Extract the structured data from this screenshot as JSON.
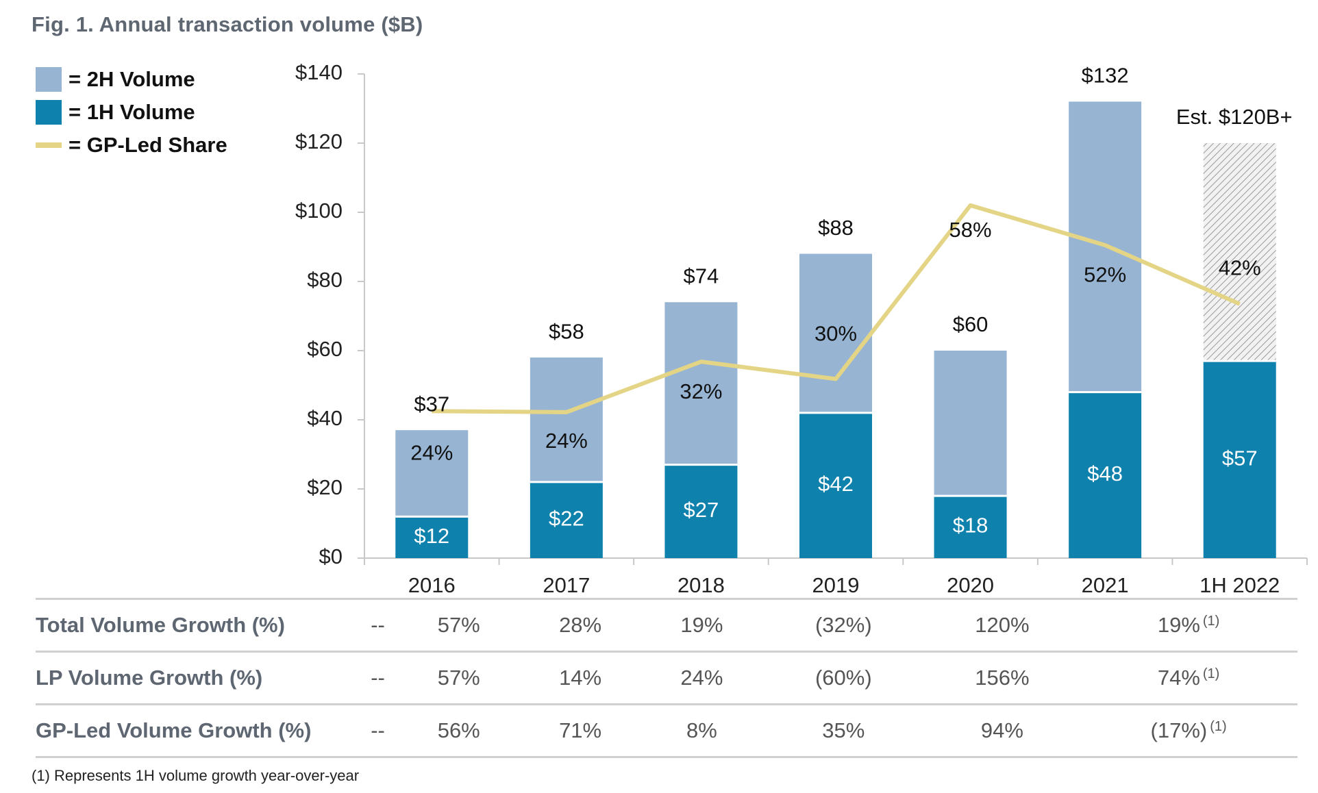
{
  "figure_title": "Fig. 1. Annual transaction volume ($B)",
  "colors": {
    "h2": "#97b5d3",
    "h1": "#0e81ad",
    "gp_line": "#e4d485",
    "axis": "#c8c8c8",
    "estimate_hatch": "#9a9a9a"
  },
  "legend": [
    {
      "label": "= 2H Volume",
      "color": "#97b5d3",
      "kind": "box"
    },
    {
      "label": "= 1H Volume",
      "color": "#0e81ad",
      "kind": "box"
    },
    {
      "label": "= GP-Led Share",
      "color": "#e4d485",
      "kind": "line"
    }
  ],
  "chart_data": {
    "type": "bar",
    "title": "Fig. 1. Annual transaction volume ($B)",
    "xlabel": "",
    "ylabel": "",
    "ylim": [
      0,
      140
    ],
    "y_ticks": [
      0,
      20,
      40,
      60,
      80,
      100,
      120,
      140
    ],
    "y_tick_labels": [
      "$0",
      "$20",
      "$40",
      "$60",
      "$80",
      "$100",
      "$120",
      "$140"
    ],
    "categories": [
      "2016",
      "2017",
      "2018",
      "2019",
      "2020",
      "2021",
      "1H 2022"
    ],
    "stacked": true,
    "series": [
      {
        "name": "1H Volume",
        "values": [
          12,
          22,
          27,
          42,
          18,
          48,
          57
        ],
        "labels": [
          "$12",
          "$22",
          "$27",
          "$42",
          "$18",
          "$48",
          "$57"
        ]
      },
      {
        "name": "2H Volume",
        "values": [
          25,
          36,
          47,
          46,
          42,
          84,
          63
        ],
        "estimated": [
          false,
          false,
          false,
          false,
          false,
          false,
          true
        ]
      }
    ],
    "totals": [
      37,
      58,
      74,
      88,
      60,
      132,
      120
    ],
    "total_labels": [
      "$37",
      "$58",
      "$74",
      "$88",
      "$60",
      "$132",
      "Est. $120B+"
    ],
    "line": {
      "name": "GP-Led Share",
      "values_on_axis": [
        42.5,
        42.2,
        56.8,
        51.8,
        102,
        90.5,
        73.5
      ],
      "labels": [
        "24%",
        "24%",
        "32%",
        "30%",
        "58%",
        "52%",
        "42%"
      ],
      "label_y": [
        30,
        33.5,
        47.8,
        64.5,
        94.5,
        81.5,
        83.5
      ]
    }
  },
  "table": {
    "rows": [
      {
        "label": "Total Volume Growth (%)",
        "cells": [
          "--",
          "57%",
          "28%",
          "19%",
          "(32%)",
          "120%",
          "19%"
        ],
        "last_footnote": "(1)"
      },
      {
        "label": "LP Volume Growth (%)",
        "cells": [
          "--",
          "57%",
          "14%",
          "24%",
          "(60%)",
          "156%",
          "74%"
        ],
        "last_footnote": "(1)"
      },
      {
        "label": "GP-Led Volume Growth (%)",
        "cells": [
          "--",
          "56%",
          "71%",
          "8%",
          "35%",
          "94%",
          "(17%)"
        ],
        "last_footnote": "(1)"
      }
    ]
  },
  "footnote": "(1)  Represents 1H volume growth year-over-year"
}
